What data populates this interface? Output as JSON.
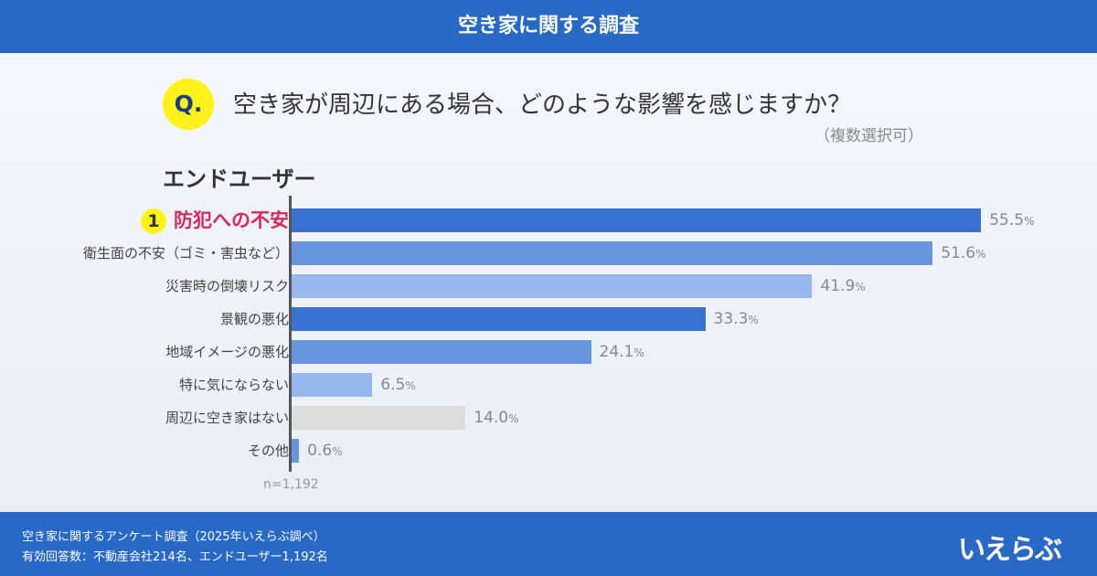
{
  "header": {
    "title": "空き家に関する調査"
  },
  "question": {
    "badge": "Q.",
    "text": "空き家が周辺にある場合、どのような影響を感じますか？",
    "note": "（複数選択可）"
  },
  "segment": "エンドユーザー",
  "chart_data": {
    "type": "bar",
    "orientation": "horizontal",
    "categories": [
      "防犯への不安",
      "衛生面の不安（ゴミ・害虫など）",
      "災害時の倒壊リスク",
      "景観の悪化",
      "地域イメージの悪化",
      "特に気にならない",
      "周辺に空き家はない",
      "その他"
    ],
    "values": [
      55.5,
      51.6,
      41.9,
      33.3,
      24.1,
      6.5,
      14.0,
      0.6
    ],
    "value_labels": [
      "55.5",
      "51.6",
      "41.9",
      "33.3",
      "24.1",
      "6.5",
      "14.0",
      "0.6"
    ],
    "unit": "%",
    "rank_label": "1",
    "colors": [
      "#3a72d2",
      "#6897e0",
      "#97b8ee",
      "#3a72d2",
      "#6897e0",
      "#97b8ee",
      "#dcdcdc",
      "#6897e0"
    ],
    "note": "n=1,192",
    "grid": false
  },
  "footer": {
    "line1": "空き家に関するアンケート調査（2025年いえらぶ調べ）",
    "line2": "有効回答数：不動産会社214名、エンドユーザー1,192名",
    "logo": "いえらぶ"
  }
}
